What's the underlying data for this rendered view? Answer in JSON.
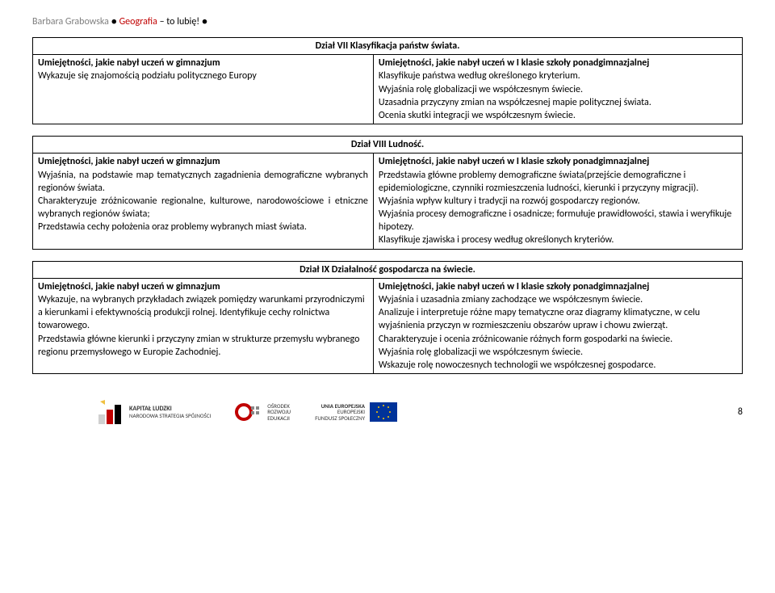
{
  "header": {
    "name": "Barbara Grabowska ",
    "bullet1": "● ",
    "title1": "Geografia ",
    "title2": "– to lubię! ",
    "bullet2": "●"
  },
  "sectionVII": {
    "title": "Dział VII Klasyfikacja państw świata.",
    "left_header": "Umiejętności, jakie nabył uczeń w gimnazjum",
    "right_header": "Umiejętności, jakie nabył uczeń w I klasie szkoły ponadgimnazjalnej",
    "left_body": "Wykazuje się znajomością podziału politycznego Europy",
    "right_body": "Klasyfikuje państwa według określonego kryterium.\nWyjaśnia rolę globalizacji we współczesnym świecie.\nUzasadnia przyczyny zmian na współczesnej mapie politycznej świata.\nOcenia skutki integracji we współczesnym świecie."
  },
  "sectionVIII": {
    "title": "Dział VIII Ludność.",
    "left_header": "Umiejętności, jakie nabył uczeń w gimnazjum",
    "right_header": "Umiejętności, jakie nabył uczeń w I klasie szkoły ponadgimnazjalnej",
    "left_body": "Wyjaśnia, na podstawie map tematycznych zagadnienia demograficzne wybranych regionów świata.\nCharakteryzuje zróżnicowanie regionalne, kulturowe, narodowościowe i etniczne wybranych regionów świata;\nPrzedstawia cechy położenia oraz problemy wybranych miast świata.",
    "right_body": "Przedstawia główne problemy demograficzne świata(przejście demograficzne i epidemiologiczne, czynniki rozmieszczenia ludności, kierunki i przyczyny migracji).\nWyjaśnia wpływ kultury i tradycji na rozwój gospodarczy regionów.\nWyjaśnia procesy demograficzne i osadnicze; formułuje prawidłowości, stawia i weryfikuje hipotezy.\nKlasyfikuje zjawiska i  procesy według określonych kryteriów."
  },
  "sectionIX": {
    "title": "Dział IX Działalność gospodarcza na świecie.",
    "left_header": "Umiejętności, jakie nabył uczeń w gimnazjum",
    "right_header": "Umiejętności, jakie nabył uczeń w I klasie szkoły ponadgimnazjalnej",
    "left_body": "Wykazuje, na wybranych przykładach związek pomiędzy warunkami przyrodniczymi a kierunkami i efektywnością produkcji rolnej. Identyfikuje cechy rolnictwa towarowego.\nPrzedstawia główne kierunki i przyczyny zmian w strukturze przemysłu wybranego regionu  przemysłowego w Europie Zachodniej.",
    "right_body": "Wyjaśnia i uzasadnia zmiany zachodzące we współczesnym świecie.\nAnalizuje i interpretuje różne mapy tematyczne oraz diagramy klimatyczne, w celu wyjaśnienia przyczyn w rozmieszczeniu obszarów upraw i chowu zwierząt.\nCharakteryzuje i ocenia zróżnicowanie różnych form gospodarki na świecie.\nWyjaśnia rolę globalizacji we współczesnym świecie.\nWskazuje rolę nowoczesnych technologii we współczesnej gospodarce."
  },
  "footer": {
    "logo1_line1": "KAPITAŁ LUDZKI",
    "logo1_line2": "NARODOWA STRATEGIA SPÓJNOŚCI",
    "logo2_line1": "OŚRODEK",
    "logo2_line2": "ROZWOJU",
    "logo2_line3": "EDUKACJI",
    "logo3_line1": "UNIA EUROPEJSKA",
    "logo3_line2": "EUROPEJSKI",
    "logo3_line3": "FUNDUSZ SPOŁECZNY",
    "page": "8"
  }
}
